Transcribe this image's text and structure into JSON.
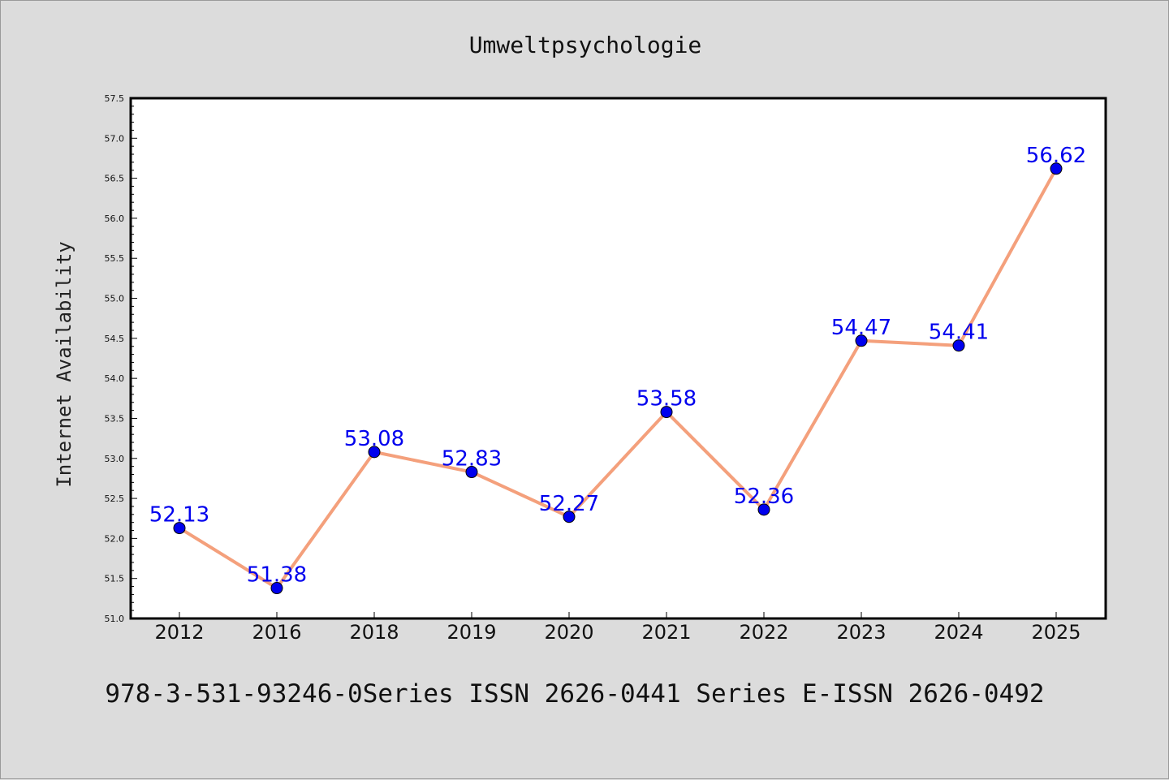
{
  "chart_data": {
    "type": "line",
    "title": "Umweltpsychologie",
    "xlabel": "",
    "ylabel": "Internet Availability",
    "categories": [
      "2012",
      "2016",
      "2018",
      "2019",
      "2020",
      "2021",
      "2022",
      "2023",
      "2024",
      "2025"
    ],
    "series": [
      {
        "values": [
          52.13,
          51.38,
          53.08,
          52.83,
          52.27,
          53.58,
          52.36,
          54.47,
          54.41,
          56.62
        ],
        "labels": [
          "52.13",
          "51.38",
          "53.08",
          "52.83",
          "52.27",
          "53.58",
          "52.36",
          "54.47",
          "54.41",
          "56.62"
        ],
        "line_color": "#f4a07c",
        "marker_color": "#0000ee"
      }
    ],
    "ylim": [
      51.0,
      57.5
    ],
    "yticks": [
      "51.0",
      "51.5",
      "52.0",
      "52.5",
      "53.0",
      "53.5",
      "54.0",
      "54.5",
      "55.0",
      "55.5",
      "56.0",
      "56.5",
      "57.0",
      "57.5"
    ],
    "grid": false,
    "legend": "none"
  },
  "footer": "978-3-531-93246-0Series ISSN 2626-0441 Series E-ISSN 2626-0492"
}
